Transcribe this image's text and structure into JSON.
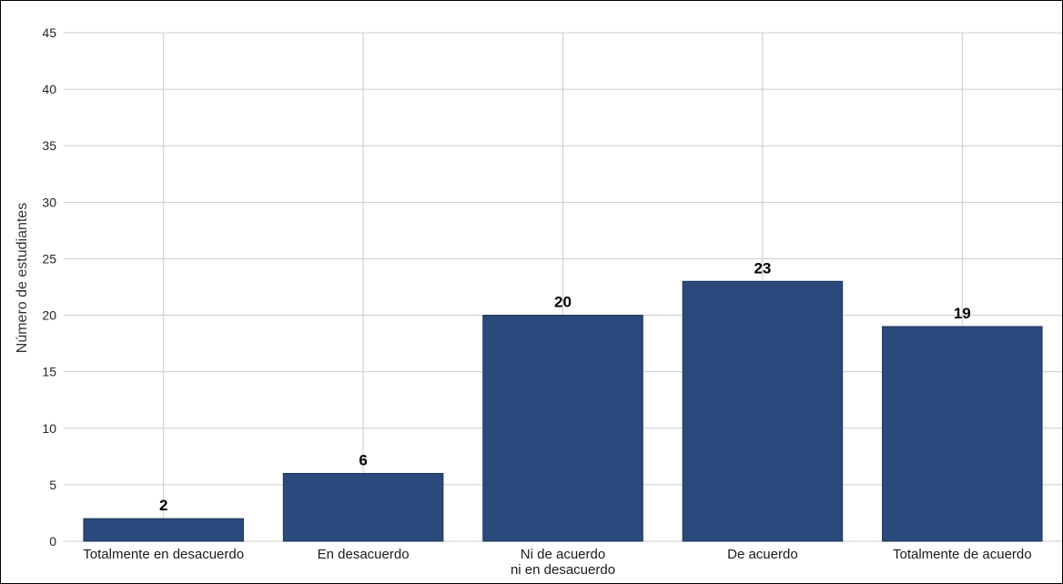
{
  "chart_data": {
    "type": "bar",
    "categories": [
      [
        "Totalmente en desacuerdo"
      ],
      [
        "En desacuerdo"
      ],
      [
        "Ni de acuerdo",
        "ni en desacuerdo"
      ],
      [
        "De acuerdo"
      ],
      [
        "Totalmente de acuerdo"
      ]
    ],
    "values": [
      2,
      6,
      20,
      23,
      19
    ],
    "data_labels": [
      "2",
      "6",
      "20",
      "23",
      "19"
    ],
    "title": "",
    "xlabel": "",
    "ylabel": "Número de estudiantes",
    "ylim": [
      0,
      45
    ],
    "yticks": [
      0,
      5,
      10,
      15,
      20,
      25,
      30,
      35,
      40,
      45
    ],
    "grid": true,
    "bar_color": "#2a4a7b",
    "bar_edge_color": "#1d3459",
    "grid_color": "#cccccc"
  }
}
